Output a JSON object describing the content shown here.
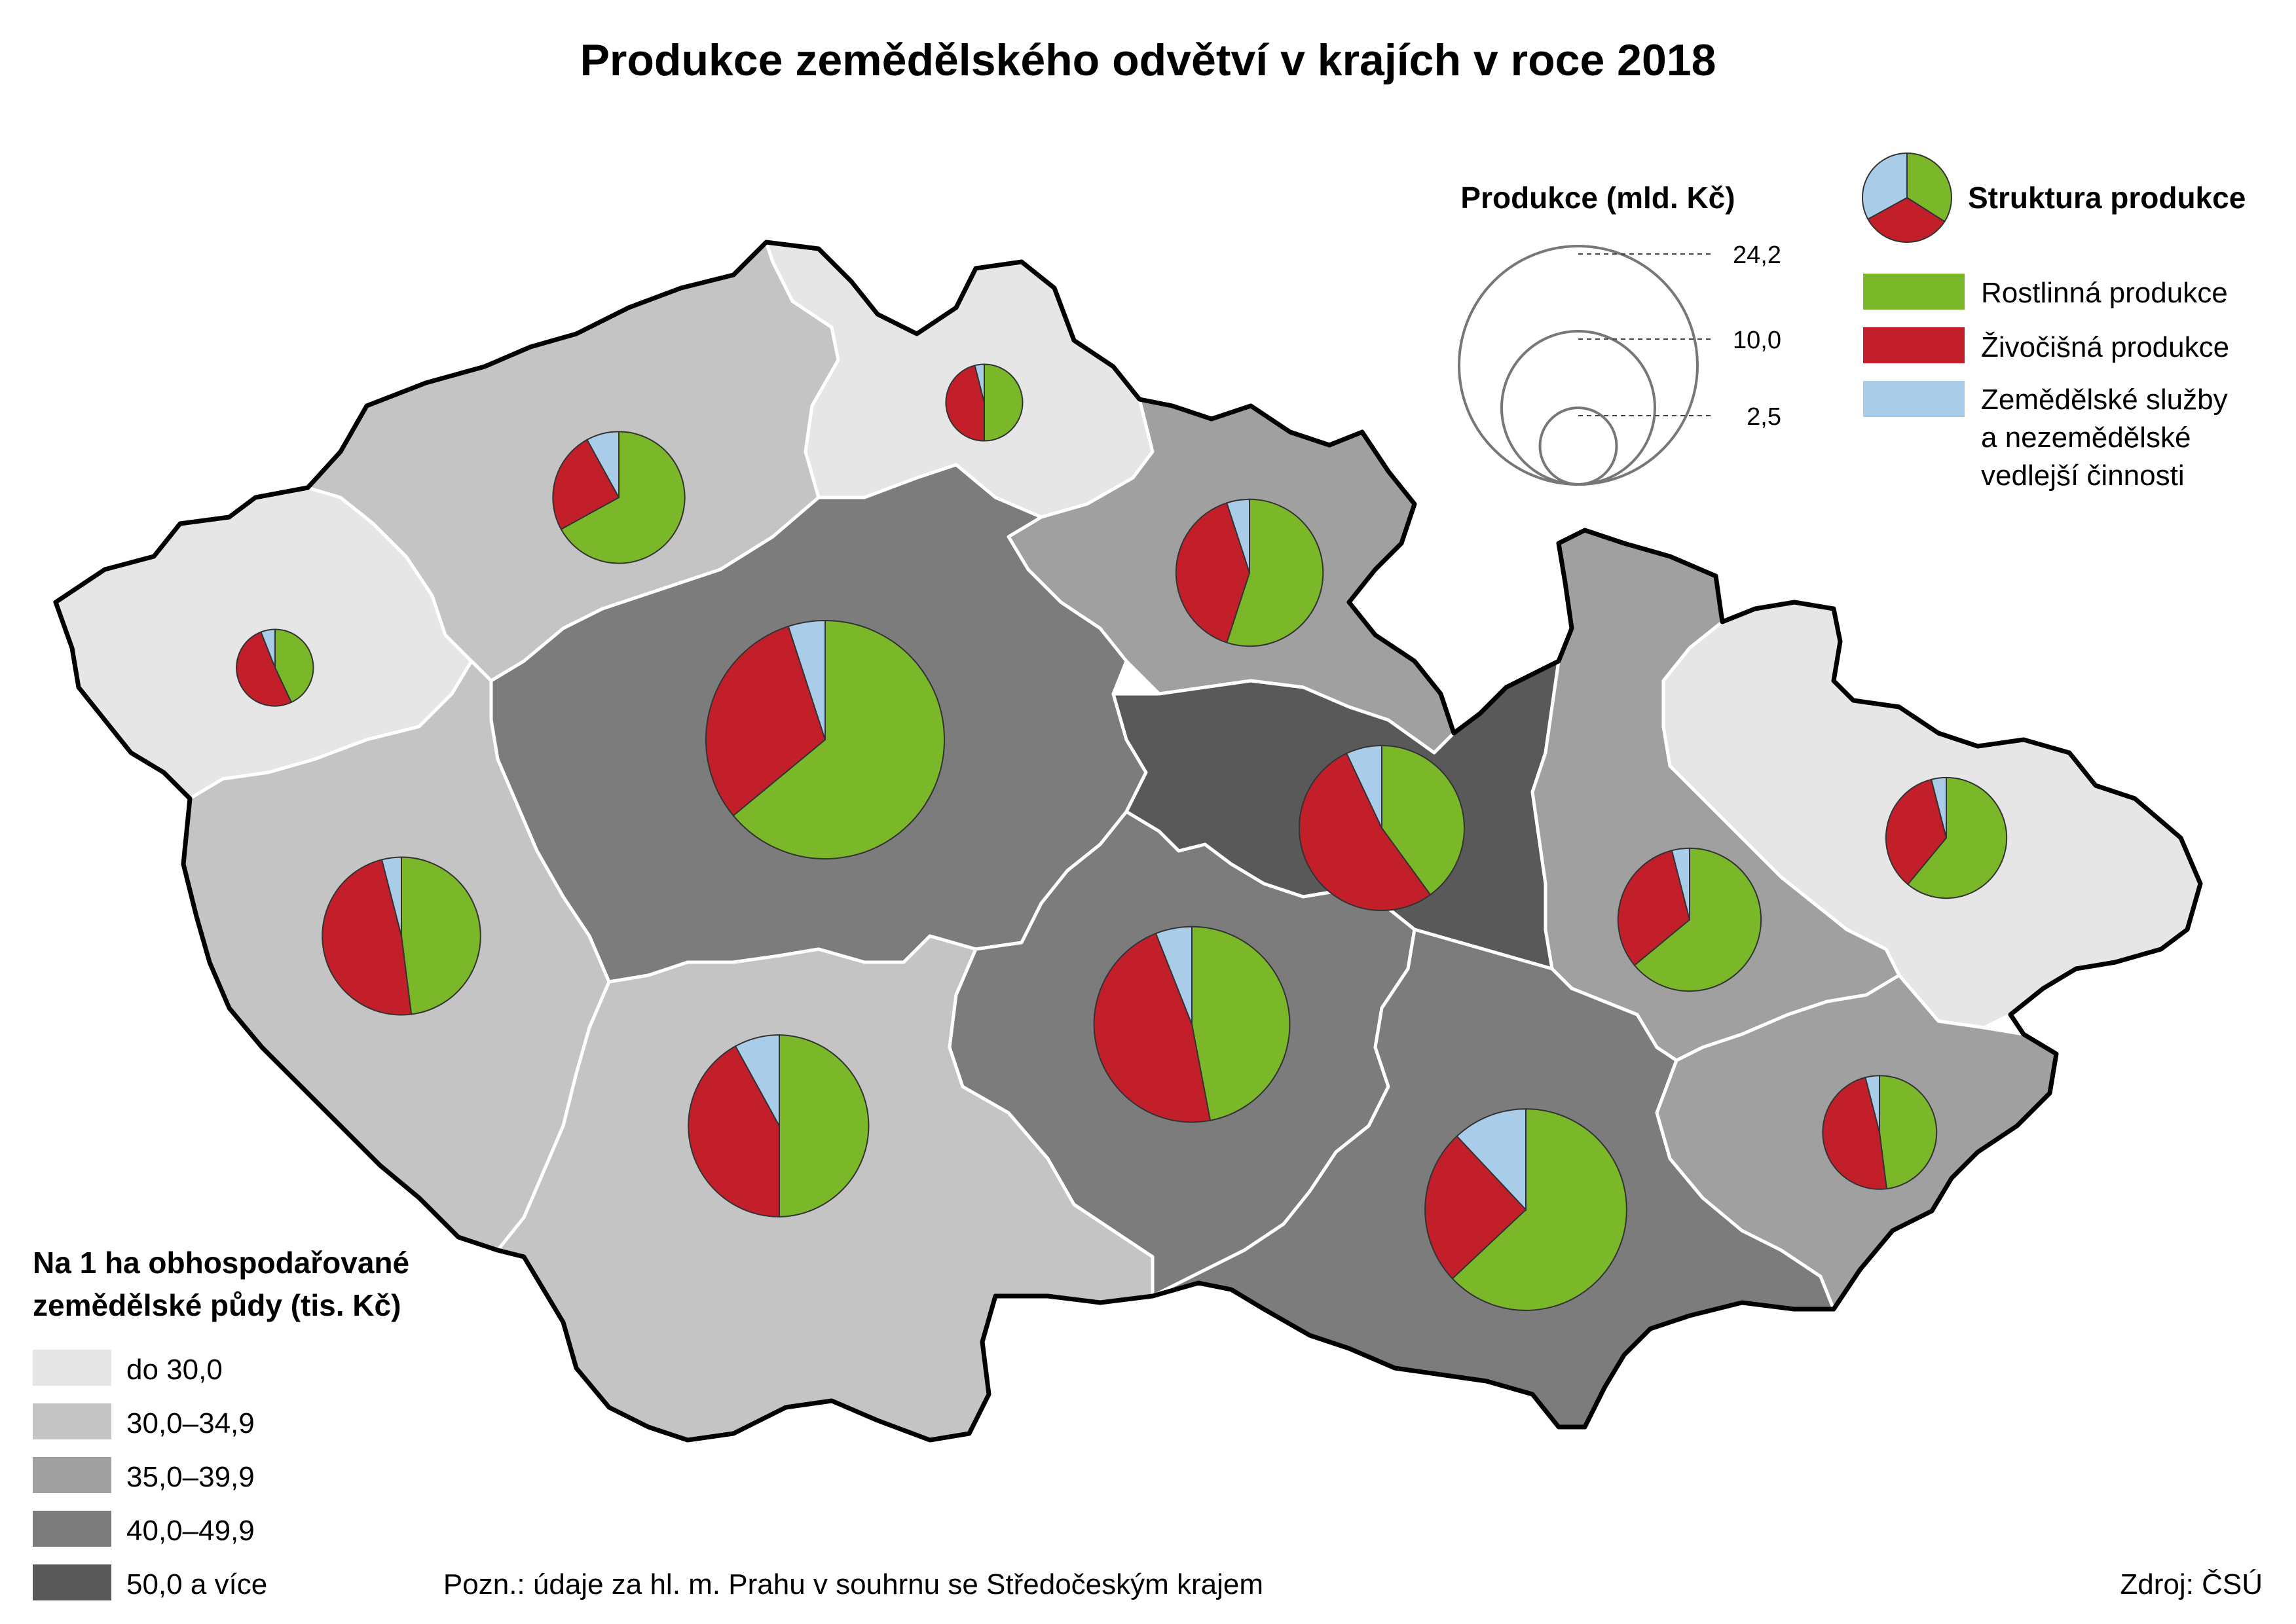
{
  "title": "Produkce zemědělského odvětví v krajích v roce 2018",
  "size_legend": {
    "title": "Produkce (mld. Kč)",
    "circles": [
      {
        "label": "24,2",
        "value": 24.2
      },
      {
        "label": "10,0",
        "value": 10.0
      },
      {
        "label": "2,5",
        "value": 2.5
      }
    ]
  },
  "structure_legend": {
    "title": "Struktura produkce",
    "items": [
      {
        "label": "Rostlinná produkce",
        "color": "#7ab829"
      },
      {
        "label": "Živočišná produkce",
        "color": "#c21f2b"
      },
      {
        "label_line1": "Zemědělské služby",
        "label_line2": "a nezemědělské",
        "label_line3": "vedlejší činnosti",
        "color": "#a9cde8"
      }
    ]
  },
  "density_legend": {
    "title_line1": "Na 1 ha obhospodařované",
    "title_line2": "zemědělské půdy (tis. Kč)",
    "classes": [
      {
        "label": "do 30,0",
        "color": "#e6e6e6"
      },
      {
        "label": "30,0–34,9",
        "color": "#c4c4c4"
      },
      {
        "label": "35,0–39,9",
        "color": "#a0a0a0"
      },
      {
        "label": "40,0–49,9",
        "color": "#7c7c7c"
      },
      {
        "label": "50,0 a více",
        "color": "#595959"
      }
    ]
  },
  "note": "Pozn.: údaje za hl. m. Prahu v souhrnu se Středočeským krajem",
  "source": "Zdroj: ČSÚ",
  "colors": {
    "plant": "#7ab829",
    "animal": "#c21f2b",
    "services": "#a9cde8"
  },
  "regions": [
    {
      "id": "karlovarsky",
      "class": 0,
      "production": 2.5,
      "shares": [
        0.43,
        0.51,
        0.06
      ]
    },
    {
      "id": "ustecky",
      "class": 1,
      "production": 7.4,
      "shares": [
        0.67,
        0.25,
        0.08
      ]
    },
    {
      "id": "liberecky",
      "class": 0,
      "production": 2.5,
      "shares": [
        0.5,
        0.46,
        0.04
      ]
    },
    {
      "id": "kralovehradecky",
      "class": 2,
      "production": 9.2,
      "shares": [
        0.55,
        0.4,
        0.05
      ]
    },
    {
      "id": "stredocesky",
      "class": 3,
      "production": 24.2,
      "shares": [
        0.64,
        0.31,
        0.05
      ]
    },
    {
      "id": "plzensky",
      "class": 1,
      "production": 10.6,
      "shares": [
        0.48,
        0.48,
        0.04
      ]
    },
    {
      "id": "pardubicky",
      "class": 4,
      "production": 11.6,
      "shares": [
        0.4,
        0.53,
        0.07
      ]
    },
    {
      "id": "jihocesky",
      "class": 1,
      "production": 14.1,
      "shares": [
        0.5,
        0.42,
        0.08
      ]
    },
    {
      "id": "vysocina",
      "class": 3,
      "production": 16.3,
      "shares": [
        0.47,
        0.47,
        0.06
      ]
    },
    {
      "id": "olomoucky",
      "class": 2,
      "production": 8.7,
      "shares": [
        0.64,
        0.32,
        0.04
      ]
    },
    {
      "id": "moravskoslezsky",
      "class": 0,
      "production": 6.2,
      "shares": [
        0.61,
        0.35,
        0.04
      ]
    },
    {
      "id": "jihomoravsky",
      "class": 3,
      "production": 17.3,
      "shares": [
        0.63,
        0.25,
        0.12
      ]
    },
    {
      "id": "zlinsky",
      "class": 2,
      "production": 5.5,
      "shares": [
        0.48,
        0.48,
        0.04
      ]
    }
  ]
}
